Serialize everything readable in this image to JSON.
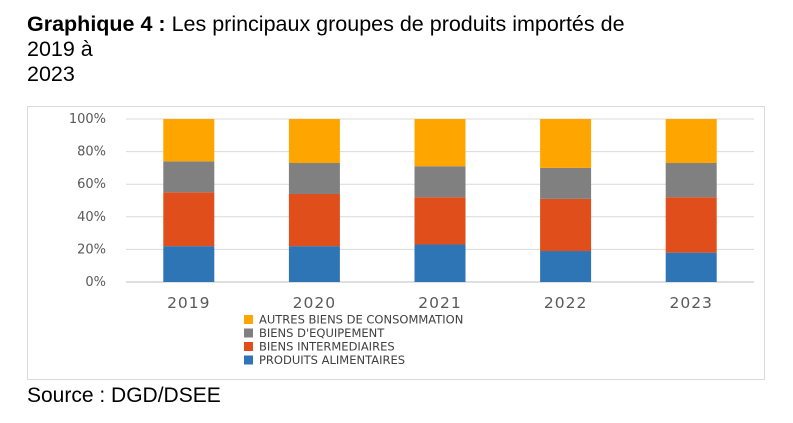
{
  "title": {
    "bold": "Graphique 4 :",
    "line1": "Les principaux groupes de produits importés de",
    "line2": "2019 à",
    "line3": "2023"
  },
  "source": "Source : DGD/DSEE",
  "chart_data": {
    "type": "bar",
    "stacked": true,
    "title": "",
    "xlabel": "",
    "ylabel": "",
    "categories": [
      "2019",
      "2020",
      "2021",
      "2022",
      "2023"
    ],
    "ylim": [
      0,
      100
    ],
    "yticks": [
      "0%",
      "20%",
      "40%",
      "60%",
      "80%",
      "100%"
    ],
    "grid": true,
    "legend_position": "bottom",
    "series": [
      {
        "name": "PRODUITS ALIMENTAIRES",
        "color": "#2e75b6",
        "values": [
          22,
          22,
          23,
          19,
          18
        ]
      },
      {
        "name": "BIENS INTERMEDIAIRES",
        "color": "#e04e1b",
        "values": [
          33,
          32,
          29,
          32,
          34
        ]
      },
      {
        "name": "BIENS D'EQUIPEMENT",
        "color": "#808080",
        "values": [
          19,
          19,
          19,
          19,
          21
        ]
      },
      {
        "name": "AUTRES BIENS DE CONSOMMATION",
        "color": "#ffa500",
        "values": [
          26,
          27,
          29,
          30,
          27
        ]
      }
    ],
    "legend_order": [
      3,
      2,
      1,
      0
    ]
  }
}
